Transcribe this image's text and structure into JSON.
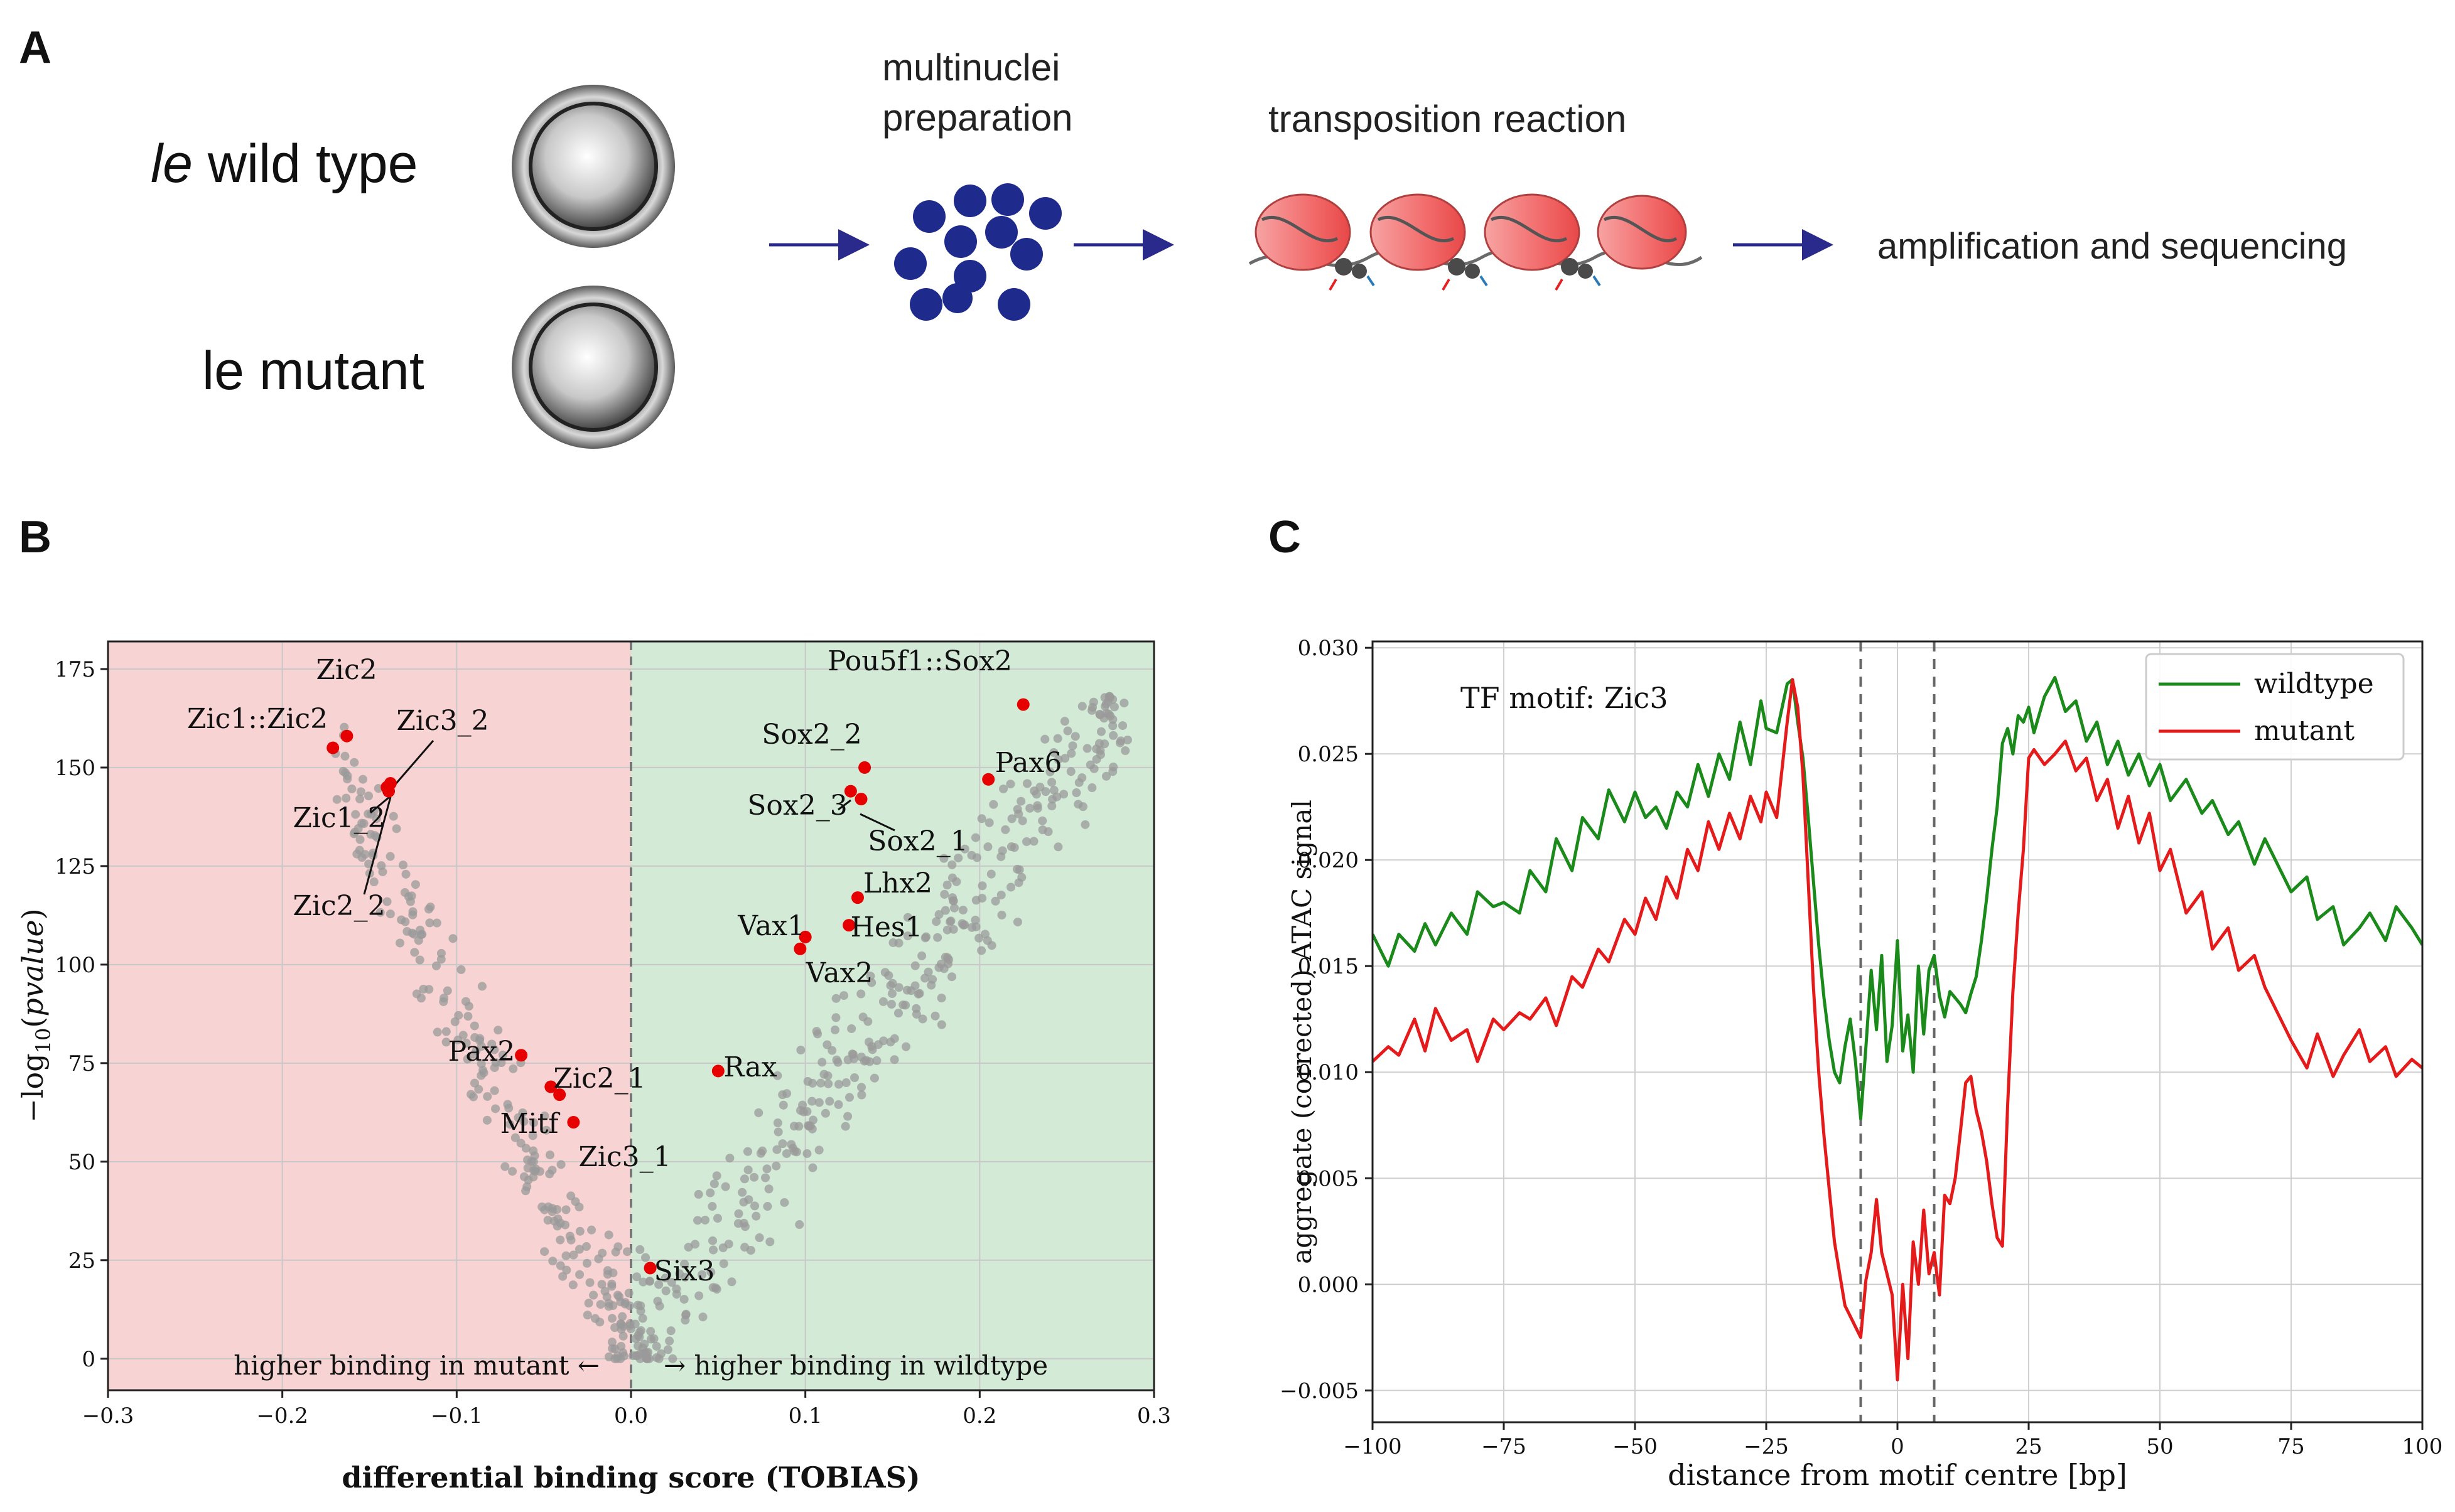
{
  "panelA": {
    "letter": "A",
    "label_wild_italic": "le",
    "label_wild_rest": " wild type",
    "label_mutant": "le mutant",
    "step1_line1": "multinuclei",
    "step1_line2": "preparation",
    "step2": "transposition reaction",
    "step3": "amplification and sequencing"
  },
  "chart_data": [
    {
      "panel": "B",
      "type": "scatter",
      "xlabel": "differential binding score (TOBIAS)",
      "ylabel": "−log10(pvalue)",
      "xlim": [
        -0.3,
        0.3
      ],
      "ylim": [
        -8,
        182
      ],
      "xticks": [
        -0.3,
        -0.2,
        -0.1,
        0.0,
        0.1,
        0.2,
        0.3
      ],
      "xtick_labels": [
        "−0.3",
        "−0.2",
        "−0.1",
        "0.0",
        "0.1",
        "0.2",
        "0.3"
      ],
      "yticks": [
        0,
        25,
        50,
        75,
        100,
        125,
        150,
        175
      ],
      "left_region": {
        "label": "higher binding in mutant ←",
        "color": "#f8d3d3"
      },
      "right_region": {
        "label": "→ higher binding in wildtype",
        "color": "#d3ead6"
      },
      "background_points": "≈600 grey points forming a V-shaped cloud (not individually labeled)",
      "highlighted": [
        {
          "name": "Zic2",
          "x": -0.163,
          "y": 158
        },
        {
          "name": "Zic1::Zic2",
          "x": -0.171,
          "y": 155
        },
        {
          "name": "Zic3_2",
          "x": -0.138,
          "y": 146
        },
        {
          "name": "Zic1_2",
          "x": -0.139,
          "y": 144
        },
        {
          "name": "Zic2_2",
          "x": -0.14,
          "y": 145
        },
        {
          "name": "Pax2",
          "x": -0.063,
          "y": 77
        },
        {
          "name": "Zic2_1",
          "x": -0.046,
          "y": 69
        },
        {
          "name": "Mitf",
          "x": -0.041,
          "y": 67
        },
        {
          "name": "Zic3_1",
          "x": -0.033,
          "y": 60
        },
        {
          "name": "Six3",
          "x": 0.011,
          "y": 23
        },
        {
          "name": "Rax",
          "x": 0.05,
          "y": 73
        },
        {
          "name": "Vax1",
          "x": 0.1,
          "y": 107
        },
        {
          "name": "Vax2",
          "x": 0.097,
          "y": 104
        },
        {
          "name": "Hes1",
          "x": 0.125,
          "y": 110
        },
        {
          "name": "Lhx2",
          "x": 0.13,
          "y": 117
        },
        {
          "name": "Sox2_3",
          "x": 0.126,
          "y": 144
        },
        {
          "name": "Sox2_1",
          "x": 0.132,
          "y": 142
        },
        {
          "name": "Sox2_2",
          "x": 0.134,
          "y": 150
        },
        {
          "name": "Pax6",
          "x": 0.205,
          "y": 147
        },
        {
          "name": "Pou5f1::Sox2",
          "x": 0.225,
          "y": 166
        }
      ]
    },
    {
      "panel": "C",
      "type": "line",
      "xlabel": "distance from motif centre [bp]",
      "ylabel": "aggregate (corrected) ATAC signal",
      "annotation": "TF motif: Zic3",
      "xlim": [
        -100,
        100
      ],
      "ylim": [
        -0.0065,
        0.0303
      ],
      "xticks": [
        -100,
        -75,
        -50,
        -25,
        0,
        25,
        50,
        75,
        100
      ],
      "xtick_labels": [
        "−100",
        "−75",
        "−50",
        "−25",
        "0",
        "25",
        "50",
        "75",
        "100"
      ],
      "yticks": [
        -0.005,
        0.0,
        0.005,
        0.01,
        0.015,
        0.02,
        0.025,
        0.03
      ],
      "ytick_labels": [
        "−0.005",
        "0.000",
        "0.005",
        "0.010",
        "0.015",
        "0.020",
        "0.025",
        "0.030"
      ],
      "vlines": [
        -7,
        7
      ],
      "legend": {
        "position": "top-right"
      },
      "series": [
        {
          "name": "wildtype",
          "color": "#1a8a1a",
          "x": [
            -100,
            -97,
            -95,
            -92,
            -90,
            -88,
            -85,
            -82,
            -80,
            -77,
            -75,
            -72,
            -70,
            -67,
            -65,
            -62,
            -60,
            -57,
            -55,
            -52,
            -50,
            -48,
            -46,
            -44,
            -42,
            -40,
            -38,
            -36,
            -34,
            -32,
            -30,
            -28,
            -26,
            -25,
            -23,
            -21,
            -20,
            -19,
            -18,
            -17,
            -16,
            -15,
            -14,
            -13,
            -12,
            -11,
            -10,
            -9,
            -8,
            -7,
            -6,
            -5,
            -4,
            -3,
            -2,
            -1,
            0,
            1,
            2,
            3,
            4,
            5,
            6,
            7,
            8,
            9,
            10,
            11,
            12,
            13,
            14,
            15,
            16,
            17,
            18,
            19,
            20,
            21,
            22,
            23,
            24,
            25,
            26,
            28,
            30,
            32,
            34,
            36,
            38,
            40,
            42,
            44,
            46,
            48,
            50,
            52,
            55,
            58,
            60,
            63,
            65,
            68,
            70,
            73,
            75,
            78,
            80,
            83,
            85,
            88,
            90,
            93,
            95,
            98,
            100
          ],
          "values": [
            0.0165,
            0.015,
            0.0165,
            0.0157,
            0.017,
            0.016,
            0.0175,
            0.0165,
            0.0185,
            0.0178,
            0.018,
            0.0175,
            0.0195,
            0.0185,
            0.021,
            0.0195,
            0.022,
            0.021,
            0.0233,
            0.0218,
            0.0232,
            0.022,
            0.0225,
            0.0215,
            0.0232,
            0.0225,
            0.0245,
            0.023,
            0.025,
            0.0238,
            0.0265,
            0.0245,
            0.0275,
            0.0262,
            0.026,
            0.0283,
            0.0285,
            0.0265,
            0.0248,
            0.022,
            0.019,
            0.016,
            0.0135,
            0.0115,
            0.01,
            0.0095,
            0.0112,
            0.0125,
            0.0105,
            0.0078,
            0.0112,
            0.0148,
            0.012,
            0.0155,
            0.0105,
            0.0122,
            0.0162,
            0.011,
            0.0127,
            0.01,
            0.015,
            0.0118,
            0.0148,
            0.0155,
            0.0136,
            0.0126,
            0.0138,
            0.0135,
            0.0132,
            0.0128,
            0.0137,
            0.0145,
            0.0162,
            0.0182,
            0.0205,
            0.0225,
            0.0255,
            0.0262,
            0.025,
            0.0268,
            0.0265,
            0.0272,
            0.026,
            0.0277,
            0.0286,
            0.027,
            0.0275,
            0.0256,
            0.0265,
            0.0245,
            0.0256,
            0.024,
            0.025,
            0.0235,
            0.0245,
            0.0228,
            0.0238,
            0.0222,
            0.0228,
            0.0212,
            0.0218,
            0.0198,
            0.021,
            0.0195,
            0.0185,
            0.0192,
            0.0172,
            0.0178,
            0.016,
            0.0168,
            0.0175,
            0.0162,
            0.0178,
            0.0168,
            0.016
          ]
        },
        {
          "name": "mutant",
          "color": "#e51a1a",
          "x": [
            -100,
            -97,
            -95,
            -92,
            -90,
            -88,
            -85,
            -82,
            -80,
            -77,
            -75,
            -72,
            -70,
            -67,
            -65,
            -62,
            -60,
            -57,
            -55,
            -52,
            -50,
            -48,
            -46,
            -44,
            -42,
            -40,
            -38,
            -36,
            -34,
            -32,
            -30,
            -28,
            -26,
            -25,
            -23,
            -21,
            -20,
            -19,
            -18,
            -17,
            -16,
            -15,
            -14,
            -13,
            -12,
            -11,
            -10,
            -9,
            -8,
            -7,
            -6,
            -5,
            -4,
            -3,
            -2,
            -1,
            0,
            1,
            2,
            3,
            4,
            5,
            6,
            7,
            8,
            9,
            10,
            11,
            12,
            13,
            14,
            15,
            16,
            17,
            18,
            19,
            20,
            21,
            22,
            23,
            24,
            25,
            26,
            28,
            30,
            32,
            34,
            36,
            38,
            40,
            42,
            44,
            46,
            48,
            50,
            52,
            55,
            58,
            60,
            63,
            65,
            68,
            70,
            73,
            75,
            78,
            80,
            83,
            85,
            88,
            90,
            93,
            95,
            98,
            100
          ],
          "values": [
            0.0105,
            0.0112,
            0.0108,
            0.0125,
            0.011,
            0.013,
            0.0115,
            0.012,
            0.0105,
            0.0125,
            0.012,
            0.0128,
            0.0125,
            0.0135,
            0.0122,
            0.0145,
            0.014,
            0.0158,
            0.0152,
            0.0172,
            0.0165,
            0.0182,
            0.0172,
            0.0192,
            0.0182,
            0.0205,
            0.0195,
            0.0218,
            0.0205,
            0.0222,
            0.021,
            0.023,
            0.0218,
            0.0232,
            0.022,
            0.0265,
            0.0285,
            0.0272,
            0.024,
            0.019,
            0.014,
            0.01,
            0.007,
            0.0045,
            0.002,
            0.0005,
            -0.001,
            -0.0015,
            -0.002,
            -0.0025,
            0.0002,
            0.0015,
            0.004,
            0.0015,
            0.0005,
            -0.0005,
            -0.0045,
            0.0,
            -0.0035,
            0.002,
            0.0,
            0.0035,
            0.0005,
            0.0015,
            -0.0005,
            0.0042,
            0.0038,
            0.005,
            0.0072,
            0.0095,
            0.0098,
            0.0082,
            0.0072,
            0.0058,
            0.0038,
            0.0022,
            0.0018,
            0.0085,
            0.0138,
            0.0175,
            0.0205,
            0.0248,
            0.0252,
            0.0245,
            0.025,
            0.0256,
            0.0242,
            0.0248,
            0.0228,
            0.0238,
            0.0215,
            0.023,
            0.0208,
            0.0222,
            0.0195,
            0.0205,
            0.0175,
            0.0185,
            0.0158,
            0.0168,
            0.0148,
            0.0155,
            0.014,
            0.0125,
            0.0115,
            0.0102,
            0.0118,
            0.0098,
            0.0108,
            0.012,
            0.0105,
            0.0112,
            0.0098,
            0.0106,
            0.0102
          ]
        }
      ]
    }
  ],
  "panelB_letter": "B",
  "panelC_letter": "C",
  "colors": {
    "wildtype": "#1a8a1a",
    "mutant": "#e51a1a",
    "highlight": "#e60000",
    "points": "#9a9a9a",
    "arrows": "#2a2a8c",
    "nuclei": "#1e2a8c"
  }
}
